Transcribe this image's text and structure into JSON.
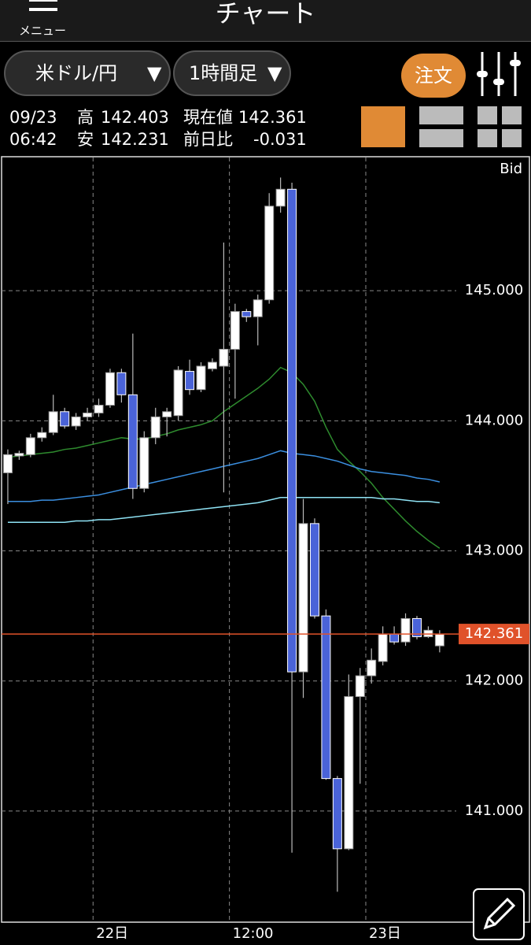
{
  "header": {
    "menu": "メニュー",
    "title": "チャート"
  },
  "toolbar": {
    "pair": "米ドル/円",
    "timeframe": "1時間足",
    "order": "注文"
  },
  "info": {
    "date": "09/23",
    "time": "06:42",
    "high_label": "高",
    "high": "142.403",
    "low_label": "安",
    "low": "142.231",
    "current_label": "現在値",
    "current": "142.361",
    "change_label": "前日比",
    "change": "-0.031"
  },
  "chart_data": {
    "type": "candlestick",
    "price_side": "Bid",
    "x": [
      0,
      1,
      2,
      3,
      4,
      5,
      6,
      7,
      8,
      9,
      10,
      11,
      12,
      13,
      14,
      15,
      16,
      17,
      18,
      19,
      20,
      21,
      22,
      23,
      24,
      25,
      26,
      27,
      28,
      29,
      30,
      31,
      32,
      33,
      34,
      35,
      36,
      37,
      38
    ],
    "open": [
      143.6,
      143.73,
      143.74,
      143.87,
      143.91,
      144.07,
      143.96,
      144.03,
      144.06,
      144.12,
      144.37,
      144.2,
      143.48,
      143.87,
      144.03,
      144.04,
      144.38,
      144.24,
      144.4,
      144.42,
      144.55,
      144.84,
      144.8,
      144.93,
      145.65,
      145.78,
      142.07,
      143.21,
      142.5,
      141.25,
      140.71,
      141.88,
      142.04,
      142.15,
      142.36,
      142.3,
      142.48,
      142.34,
      142.27
    ],
    "high": [
      143.78,
      143.77,
      143.9,
      143.95,
      144.2,
      144.1,
      144.06,
      144.1,
      144.17,
      144.4,
      144.4,
      144.67,
      143.92,
      144.1,
      144.1,
      144.42,
      144.47,
      144.45,
      144.48,
      145.37,
      144.9,
      144.86,
      144.97,
      145.75,
      145.87,
      145.83,
      143.4,
      143.25,
      142.55,
      141.27,
      142.05,
      142.1,
      142.25,
      142.42,
      142.42,
      142.52,
      142.5,
      142.42,
      142.39
    ],
    "low": [
      143.36,
      143.7,
      143.72,
      143.84,
      143.89,
      143.94,
      143.93,
      144.0,
      144.03,
      144.1,
      144.14,
      143.4,
      143.45,
      143.82,
      143.88,
      144.0,
      144.2,
      144.22,
      144.38,
      143.45,
      144.17,
      144.76,
      144.58,
      144.9,
      145.6,
      140.68,
      141.87,
      142.48,
      141.24,
      140.38,
      140.7,
      141.21,
      141.98,
      142.12,
      142.28,
      142.27,
      142.32,
      142.33,
      142.22
    ],
    "close": [
      143.74,
      143.75,
      143.87,
      143.91,
      144.07,
      143.96,
      144.03,
      144.06,
      144.12,
      144.37,
      144.2,
      143.48,
      143.87,
      144.03,
      144.07,
      144.39,
      144.24,
      144.42,
      144.45,
      144.55,
      144.84,
      144.8,
      144.93,
      145.65,
      145.78,
      142.07,
      143.21,
      142.5,
      141.25,
      140.71,
      141.88,
      142.04,
      142.16,
      142.36,
      142.3,
      142.48,
      142.34,
      142.39,
      142.36
    ],
    "up_color": "#ffffff",
    "down_color": "#4a63d8",
    "ma_lines": [
      {
        "color": "#2e8b2e",
        "values": [
          143.72,
          143.73,
          143.74,
          143.75,
          143.76,
          143.78,
          143.79,
          143.81,
          143.83,
          143.85,
          143.87,
          143.86,
          143.86,
          143.88,
          143.9,
          143.93,
          143.95,
          143.97,
          144.0,
          144.07,
          144.13,
          144.19,
          144.25,
          144.32,
          144.41,
          144.37,
          144.28,
          144.15,
          143.95,
          143.78,
          143.69,
          143.61,
          143.52,
          143.41,
          143.32,
          143.23,
          143.15,
          143.08,
          143.02
        ]
      },
      {
        "color": "#3b8fe0",
        "values": [
          143.38,
          143.38,
          143.38,
          143.39,
          143.39,
          143.4,
          143.41,
          143.42,
          143.43,
          143.45,
          143.47,
          143.49,
          143.51,
          143.53,
          143.55,
          143.57,
          143.59,
          143.61,
          143.63,
          143.65,
          143.67,
          143.69,
          143.71,
          143.74,
          143.77,
          143.75,
          143.74,
          143.73,
          143.71,
          143.69,
          143.66,
          143.63,
          143.61,
          143.6,
          143.59,
          143.58,
          143.56,
          143.55,
          143.53
        ]
      },
      {
        "color": "#8fe3f5",
        "values": [
          143.22,
          143.22,
          143.22,
          143.22,
          143.22,
          143.22,
          143.23,
          143.23,
          143.24,
          143.24,
          143.25,
          143.26,
          143.27,
          143.28,
          143.29,
          143.3,
          143.31,
          143.32,
          143.33,
          143.34,
          143.35,
          143.36,
          143.37,
          143.39,
          143.41,
          143.41,
          143.41,
          143.41,
          143.41,
          143.41,
          143.41,
          143.41,
          143.41,
          143.4,
          143.4,
          143.39,
          143.38,
          143.38,
          143.37
        ]
      }
    ],
    "current_price": 142.361,
    "current_color": "#e0522a",
    "xlim": [
      -0.55,
      45.9
    ],
    "xticks": [
      {
        "value": 7.5,
        "label": "22日"
      },
      {
        "value": 19.5,
        "label": "12:00"
      },
      {
        "value": 31.5,
        "label": "23日"
      }
    ],
    "ylim": [
      140.152,
      146.024
    ],
    "yticks": [
      {
        "value": 141,
        "label": "141.000"
      },
      {
        "value": 142,
        "label": "142.000"
      },
      {
        "value": 143,
        "label": "143.000"
      },
      {
        "value": 144,
        "label": "144.000"
      },
      {
        "value": 145,
        "label": "145.000"
      }
    ],
    "grid": true
  }
}
